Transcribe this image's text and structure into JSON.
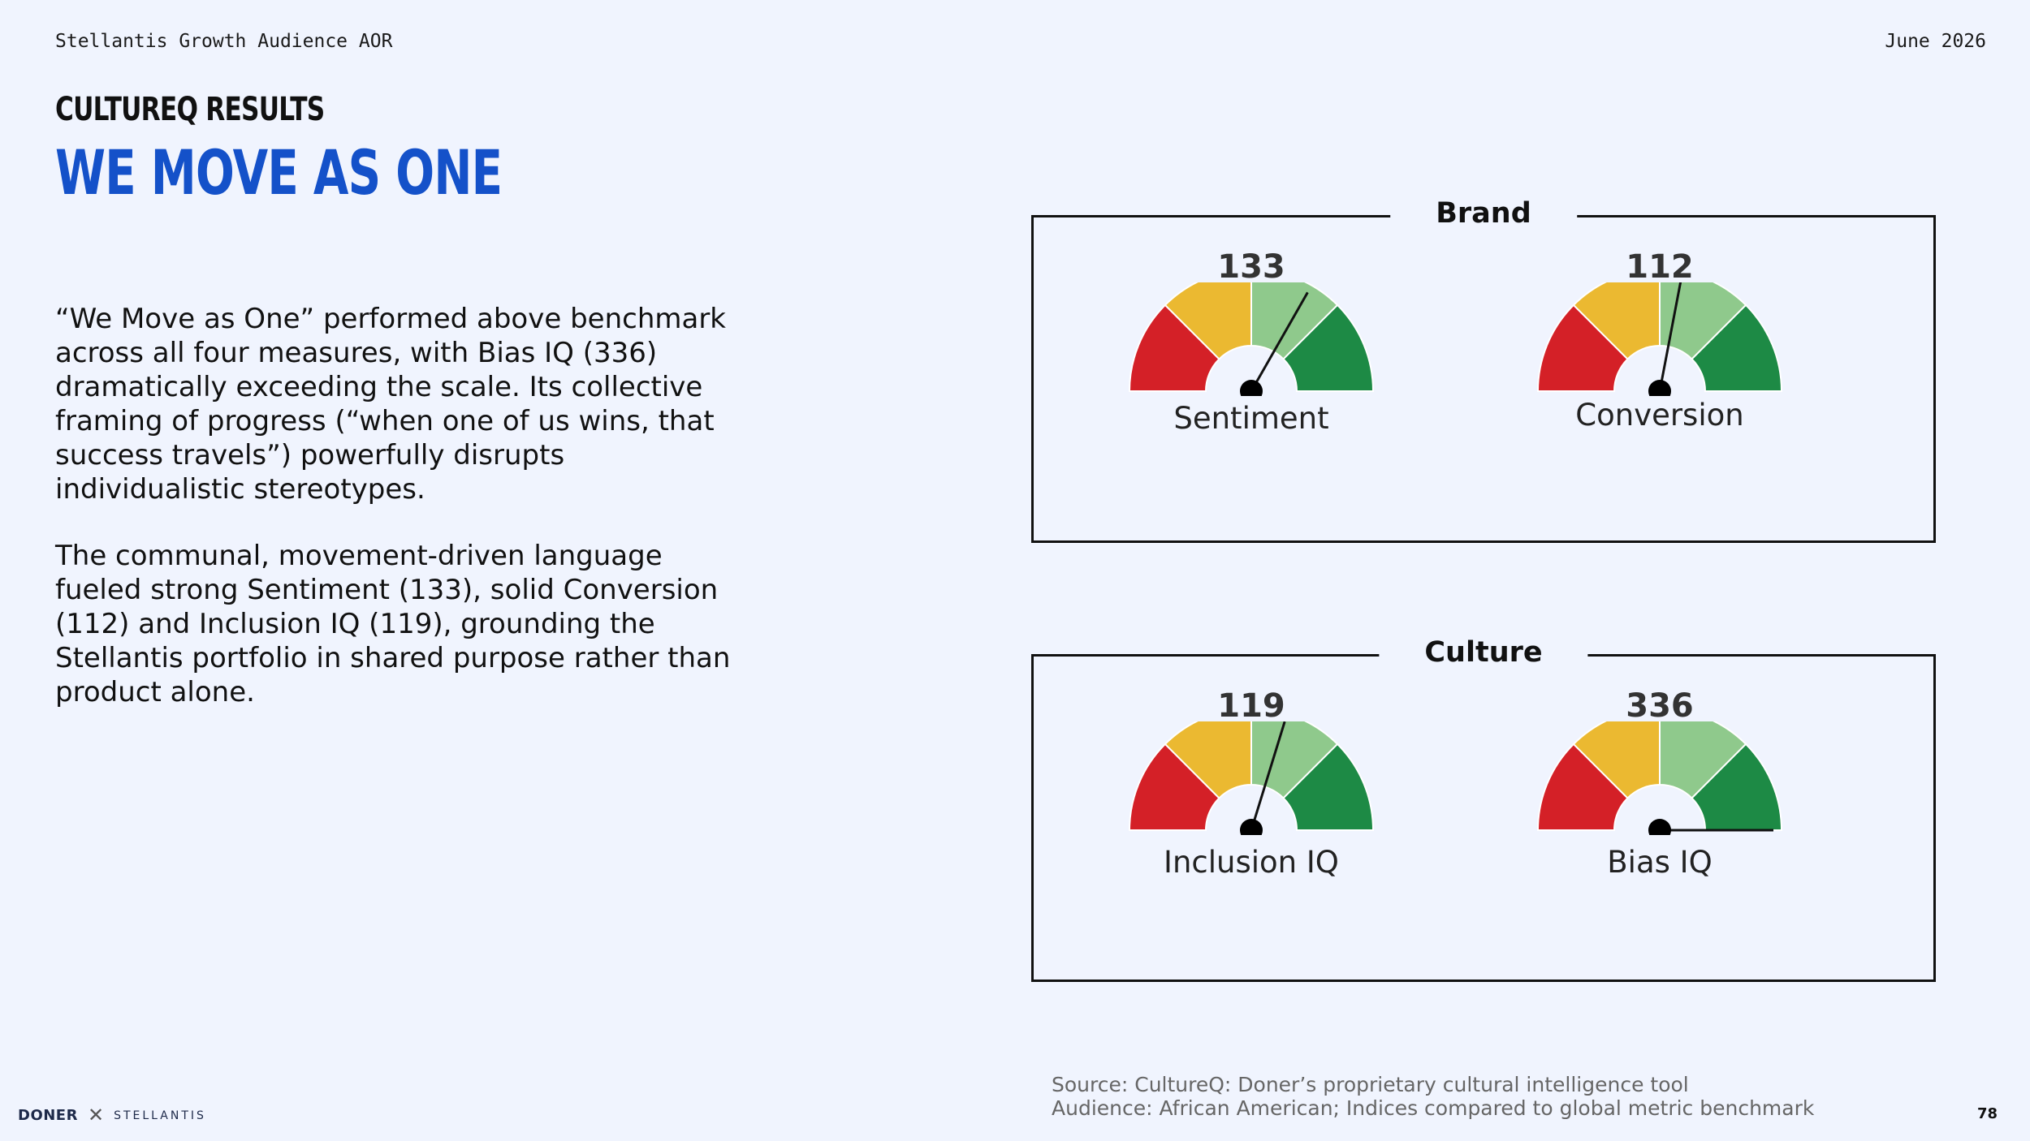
{
  "header": {
    "left": "Stellantis Growth Audience AOR",
    "right": "June 2026"
  },
  "kicker": "CultureQ Results",
  "headline": "We Move As One",
  "body": {
    "p1": "“We Move as One” performed above benchmark across all four measures, with Bias IQ (336) dramatically exceeding the scale. Its collective framing of progress (“when one of us wins, that success travels”) powerfully disrupts individualistic stereotypes.",
    "p2": "The communal, movement-driven language fueled strong Sentiment (133), solid Conversion (112) and Inclusion IQ (119), grounding the Stellantis portfolio in shared purpose rather than product alone."
  },
  "chart_data": [
    {
      "type": "gauge",
      "title": "Brand",
      "scale": {
        "min": 0,
        "max": 200,
        "benchmark": 100
      },
      "zone_colors": [
        "#d42027",
        "#ebb931",
        "#8fc98c",
        "#1d8a45"
      ],
      "series": [
        {
          "name": "Sentiment",
          "value": 133
        },
        {
          "name": "Conversion",
          "value": 112
        }
      ]
    },
    {
      "type": "gauge",
      "title": "Culture",
      "scale": {
        "min": 0,
        "max": 200,
        "benchmark": 100
      },
      "zone_colors": [
        "#d42027",
        "#ebb931",
        "#8fc98c",
        "#1d8a45"
      ],
      "series": [
        {
          "name": "Inclusion IQ",
          "value": 119
        },
        {
          "name": "Bias IQ",
          "value": 336
        }
      ]
    }
  ],
  "footer": {
    "source_line1": "Source: CultureQ: Doner’s proprietary cultural intelligence tool",
    "source_line2": "Audience: African American; Indices compared to global metric benchmark",
    "page_number": "78",
    "logo_doner": "DONER",
    "logo_x": "✕",
    "logo_stellantis": "STELLANTIS"
  }
}
